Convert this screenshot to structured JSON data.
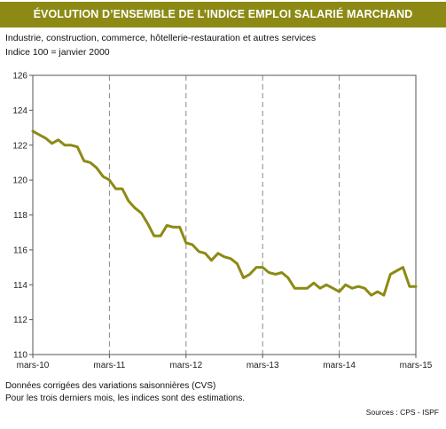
{
  "title": "ÉVOLUTION D’ENSEMBLE DE L’INDICE EMPLOI SALARIÉ MARCHAND",
  "subtitle_line1": "Industrie, construction, commerce, hôtellerie-restauration et autres services",
  "subtitle_line2": "Indice 100 = janvier 2000",
  "note_line1": "Données corrigées des variations saisonnières (CVS)",
  "note_line2": "Pour les trois derniers mois, les indices sont des estimations.",
  "source": "Sources : CPS - ISPF",
  "colors": {
    "title_bg": "#8c8a14",
    "line": "#8c8a14",
    "axis": "#555555",
    "grid": "#888888"
  },
  "chart_data": {
    "type": "line",
    "title": "ÉVOLUTION D’ENSEMBLE DE L’INDICE EMPLOI SALARIÉ MARCHAND",
    "xlabel": "",
    "ylabel": "",
    "ylim": [
      110,
      126
    ],
    "yticks": [
      110,
      112,
      114,
      116,
      118,
      120,
      122,
      124,
      126
    ],
    "xlim": [
      0,
      20
    ],
    "xticks": [
      {
        "x": 0,
        "label": "mars-10"
      },
      {
        "x": 4,
        "label": "mars-11"
      },
      {
        "x": 8,
        "label": "mars-12"
      },
      {
        "x": 12,
        "label": "mars-13"
      },
      {
        "x": 16,
        "label": "mars-14"
      },
      {
        "x": 20,
        "label": "mars-15"
      }
    ],
    "grid": "vertical dashed at each year",
    "series": [
      {
        "x": [
          0,
          0.33,
          0.67,
          1,
          1.33,
          1.67,
          2,
          2.33,
          2.67,
          3,
          3.33,
          3.67,
          4,
          4.33,
          4.67,
          5,
          5.33,
          5.67,
          6,
          6.33,
          6.67,
          7,
          7.33,
          7.67,
          8,
          8.33,
          8.67,
          9,
          9.33,
          9.67,
          10,
          10.33,
          10.67,
          11,
          11.33,
          11.67,
          12,
          12.33,
          12.67,
          13,
          13.33,
          13.67,
          14,
          14.33,
          14.67,
          15,
          15.33,
          15.67,
          16,
          16.33,
          16.67,
          17,
          17.33,
          17.67,
          18,
          18.33,
          18.67,
          19,
          19.33,
          19.67,
          20
        ],
        "y": [
          122.8,
          122.6,
          122.4,
          122.1,
          122.3,
          122.0,
          122.0,
          121.9,
          121.1,
          121.0,
          120.7,
          120.2,
          120.0,
          119.5,
          119.5,
          118.8,
          118.4,
          118.1,
          117.5,
          116.8,
          116.8,
          117.4,
          117.3,
          117.3,
          116.4,
          116.3,
          115.9,
          115.8,
          115.4,
          115.8,
          115.6,
          115.5,
          115.2,
          114.4,
          114.6,
          115.0,
          115.0,
          114.7,
          114.6,
          114.7,
          114.4,
          113.8,
          113.8,
          113.8,
          114.1,
          113.8,
          114.0,
          113.8,
          113.6,
          114.0,
          113.8,
          113.9,
          113.8,
          113.4,
          113.6,
          113.4,
          114.6,
          114.8,
          115.0,
          113.9,
          113.9
        ]
      }
    ]
  }
}
